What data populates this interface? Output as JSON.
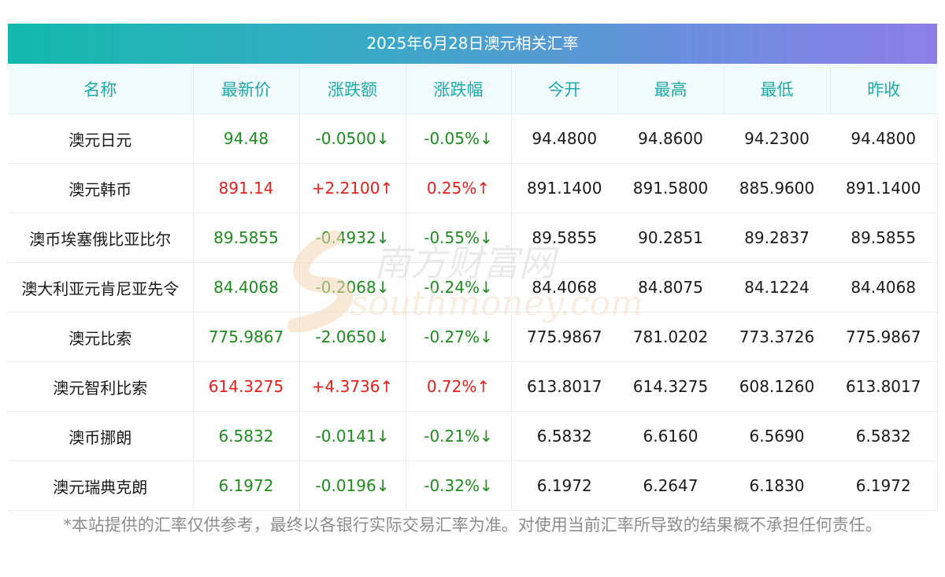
{
  "title": "2025年6月28日澳元相关汇率",
  "headers": [
    "名称",
    "最新价",
    "涨跌额",
    "涨跌幅",
    "今开",
    "最高",
    "最低",
    "昨收"
  ],
  "rows": [
    {
      "name": "澳元日元",
      "latest": "94.48",
      "change": "-0.0500↓",
      "pct": "-0.05%↓",
      "open": "94.4800",
      "high": "94.8600",
      "low": "94.2300",
      "prev": "94.4800",
      "dir": "down"
    },
    {
      "name": "澳元韩币",
      "latest": "891.14",
      "change": "+2.2100↑",
      "pct": "0.25%↑",
      "open": "891.1400",
      "high": "891.5800",
      "low": "885.9600",
      "prev": "891.1400",
      "dir": "up"
    },
    {
      "name": "澳币埃塞俄比亚比尔",
      "latest": "89.5855",
      "change": "-0.4932↓",
      "pct": "-0.55%↓",
      "open": "89.5855",
      "high": "90.2851",
      "low": "89.2837",
      "prev": "89.5855",
      "dir": "down"
    },
    {
      "name": "澳大利亚元肯尼亚先令",
      "latest": "84.4068",
      "change": "-0.2068↓",
      "pct": "-0.24%↓",
      "open": "84.4068",
      "high": "84.8075",
      "low": "84.1224",
      "prev": "84.4068",
      "dir": "down"
    },
    {
      "name": "澳元比索",
      "latest": "775.9867",
      "change": "-2.0650↓",
      "pct": "-0.27%↓",
      "open": "775.9867",
      "high": "781.0202",
      "low": "773.3726",
      "prev": "775.9867",
      "dir": "down"
    },
    {
      "name": "澳元智利比索",
      "latest": "614.3275",
      "change": "+4.3736↑",
      "pct": "0.72%↑",
      "open": "613.8017",
      "high": "614.3275",
      "low": "608.1260",
      "prev": "613.8017",
      "dir": "up"
    },
    {
      "name": "澳币挪朗",
      "latest": "6.5832",
      "change": "-0.0141↓",
      "pct": "-0.21%↓",
      "open": "6.5832",
      "high": "6.6160",
      "low": "6.5690",
      "prev": "6.5832",
      "dir": "down"
    },
    {
      "name": "澳元瑞典克朗",
      "latest": "6.1972",
      "change": "-0.0196↓",
      "pct": "-0.32%↓",
      "open": "6.1972",
      "high": "6.2647",
      "low": "6.1830",
      "prev": "6.1972",
      "dir": "down"
    }
  ],
  "note": "*本站提供的汇率仅供参考，最终以各银行实际交易汇率为准。对使用当前汇率所导致的结果概不承担任何责任。",
  "watermark": {
    "cn": "南方财富网",
    "en": "southmoney.com"
  },
  "colors": {
    "up": "#e3201b",
    "down": "#1f8a1f",
    "header_text": "#1fa8a8",
    "title_gradient_start": "#13b9ae",
    "title_gradient_end": "#8e7ee6"
  }
}
